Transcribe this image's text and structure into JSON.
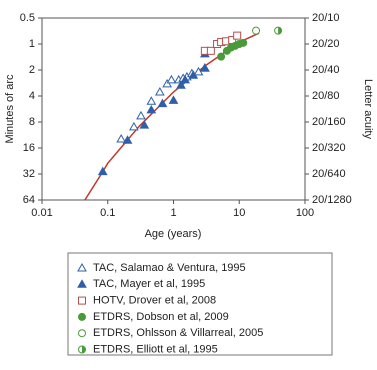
{
  "chart_data": {
    "type": "scatter",
    "xlabel": "Age (years)",
    "ylabel": "Minutes of arc",
    "y2label": "Letter acuity",
    "xscale": "log",
    "yscale": "log",
    "xlim": [
      0.01,
      100
    ],
    "xticks": [
      0.01,
      0.1,
      1,
      10,
      100
    ],
    "ylim": [
      64,
      0.5
    ],
    "yticks": [
      0.5,
      1,
      2,
      4,
      8,
      16,
      32,
      64
    ],
    "y2lim": [
      64,
      0.5
    ],
    "y2ticks": [
      {
        "value": 0.5,
        "label": "20/10"
      },
      {
        "value": 1,
        "label": "20/20"
      },
      {
        "value": 2,
        "label": "20/40"
      },
      {
        "value": 4,
        "label": "20/80"
      },
      {
        "value": 8,
        "label": "20/160"
      },
      {
        "value": 16,
        "label": "20/320"
      },
      {
        "value": 32,
        "label": "20/640"
      },
      {
        "value": 64,
        "label": "20/1280"
      }
    ],
    "curve": {
      "color": "#c0392b",
      "x": [
        0.045,
        0.084,
        0.1,
        0.3,
        1,
        3,
        10,
        20
      ],
      "values": [
        64,
        30,
        24,
        9,
        3.6,
        1.8,
        0.95,
        0.75
      ]
    },
    "series": [
      {
        "name": "TAC, Salamao & Ventura, 1995",
        "color": "#2f5fa8",
        "marker": "triangle-open",
        "x": [
          0.16,
          0.25,
          0.32,
          0.46,
          0.62,
          0.8,
          0.93,
          1.2,
          1.4,
          1.6,
          1.9,
          2.4,
          3.0
        ],
        "values": [
          12.6,
          9.1,
          6.8,
          4.6,
          3.6,
          2.9,
          2.6,
          2.6,
          2.5,
          2.4,
          2.2,
          2.1,
          1.9
        ]
      },
      {
        "name": "TAC, Mayer et al, 1995",
        "color": "#2f5fa8",
        "marker": "triangle-filled",
        "x": [
          0.084,
          0.2,
          0.36,
          0.46,
          0.68,
          1.0,
          1.3,
          1.5,
          2.0,
          3.0,
          3.0
        ],
        "values": [
          30,
          13,
          8.7,
          5.8,
          4.9,
          4.5,
          3.0,
          2.6,
          2.3,
          1.9,
          1.3
        ]
      },
      {
        "name": "HOTV, Drover et al, 2008",
        "color": "#b5504f",
        "marker": "square-open",
        "x": [
          3.0,
          3.7,
          4.6,
          5.3,
          6.3,
          7.8,
          9.3
        ],
        "values": [
          1.2,
          1.2,
          1.0,
          0.95,
          0.93,
          0.9,
          0.8
        ]
      },
      {
        "name": "ETDRS, Dobson et al, 2009",
        "color": "#4a9a3a",
        "marker": "circle-filled",
        "x": [
          5.3,
          6.5,
          7.5,
          8.7,
          10,
          11.5
        ],
        "values": [
          1.4,
          1.2,
          1.1,
          1.05,
          1.0,
          0.97
        ]
      },
      {
        "name": "ETDRS, Ohlsson & Villarreal, 2005",
        "color": "#4a9a3a",
        "marker": "circle-open",
        "x": [
          18
        ],
        "values": [
          0.7
        ]
      },
      {
        "name": "ETDRS, Elliott et al, 1995",
        "color": "#4a9a3a",
        "marker": "circle-half",
        "x": [
          39
        ],
        "values": [
          0.7
        ]
      }
    ]
  }
}
